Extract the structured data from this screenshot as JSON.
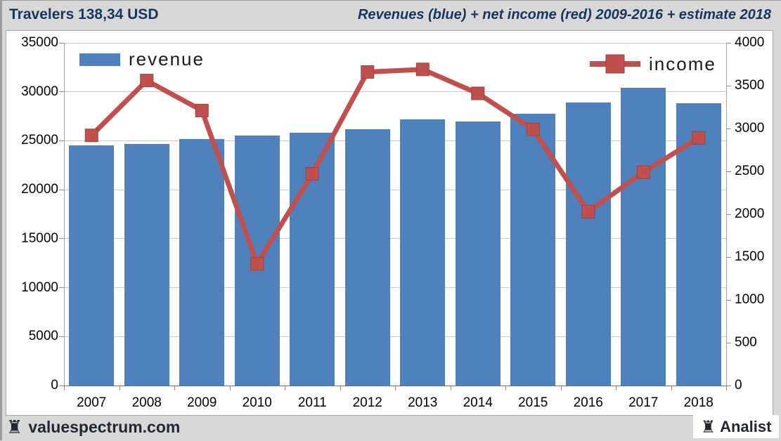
{
  "header": {
    "left_title": "Travelers 138,34 USD",
    "right_title": "Revenues (blue) + net income (red) 2009-2016 + estimate 2018"
  },
  "footer": {
    "site": "valuespectrum.com",
    "brand": "Analist",
    "rook_icon": "♜"
  },
  "colors": {
    "bar_blue": "#4f81bd",
    "line_red": "#c0504d",
    "marker_edge": "#9e3e3b",
    "title_navy": "#17365d",
    "background_gray": "#d8d8d8",
    "plot_white": "#ffffff",
    "gridline_gray": "#c9c9c9"
  },
  "chart_data": {
    "type": "bar",
    "subtype": "bar+line combo, dual axis",
    "title": "Revenues (blue) + net income (red) 2009-2016 + estimate 2018",
    "categories": [
      "2007",
      "2008",
      "2009",
      "2010",
      "2011",
      "2012",
      "2013",
      "2014",
      "2015",
      "2016",
      "2017",
      "2018"
    ],
    "series": [
      {
        "name": "revenue",
        "type": "bar",
        "axis": "left",
        "color": "#4f81bd",
        "values": [
          24500,
          24700,
          25150,
          25550,
          25800,
          26150,
          27200,
          26950,
          27750,
          28900,
          30400,
          28850
        ]
      },
      {
        "name": "income",
        "type": "line",
        "axis": "right",
        "color": "#c0504d",
        "values": [
          2920,
          3560,
          3210,
          1420,
          2470,
          3660,
          3690,
          3410,
          2990,
          2030,
          2490,
          2890
        ]
      }
    ],
    "left_axis": {
      "min": 0,
      "max": 35000,
      "step": 5000,
      "tick_labels": [
        "0",
        "5000",
        "10000",
        "15000",
        "20000",
        "25000",
        "30000",
        "35000"
      ]
    },
    "right_axis": {
      "min": 0,
      "max": 4000,
      "step": 500,
      "tick_labels": [
        "0",
        "500",
        "1000",
        "1500",
        "2000",
        "2500",
        "3000",
        "3500",
        "4000"
      ]
    },
    "grid": "horizontal gridlines on left-axis steps",
    "legend_position": "revenue top-left, income top-right"
  }
}
